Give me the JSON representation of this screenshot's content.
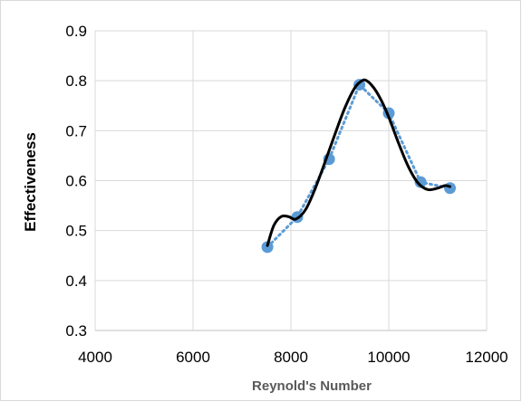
{
  "chart_data": {
    "type": "scatter",
    "title": "",
    "xlabel": "Reynold's Number",
    "ylabel": "Effectiveness",
    "xlim": [
      4000,
      12000
    ],
    "ylim": [
      0.3,
      0.9
    ],
    "xticks": [
      4000,
      6000,
      8000,
      10000,
      12000
    ],
    "yticks": [
      0.3,
      0.4,
      0.5,
      0.6,
      0.7,
      0.8,
      0.9
    ],
    "xtick_labels": [
      "4000",
      "6000",
      "8000",
      "10000",
      "12000"
    ],
    "ytick_labels": [
      "0.3",
      "0.4",
      "0.5",
      "0.6",
      "0.7",
      "0.8",
      "0.9"
    ],
    "grid": true,
    "legend": "none",
    "series": [
      {
        "style": "markers-with-dotted-line",
        "color": "#5b9bd5",
        "x": [
          7520,
          8130,
          8780,
          9400,
          10000,
          10650,
          11250
        ],
        "y": [
          0.467,
          0.527,
          0.643,
          0.792,
          0.735,
          0.597,
          0.585
        ]
      },
      {
        "style": "smooth-trend-line",
        "color": "#000000",
        "x": [
          7520,
          7650,
          7800,
          7950,
          8100,
          8300,
          8500,
          8700,
          8900,
          9100,
          9300,
          9450,
          9550,
          9700,
          9850,
          10000,
          10200,
          10400,
          10600,
          10800,
          11000,
          11150,
          11250
        ],
        "y": [
          0.47,
          0.51,
          0.528,
          0.528,
          0.523,
          0.542,
          0.585,
          0.638,
          0.693,
          0.745,
          0.785,
          0.8,
          0.8,
          0.785,
          0.76,
          0.727,
          0.675,
          0.628,
          0.595,
          0.582,
          0.585,
          0.59,
          0.588
        ]
      }
    ]
  }
}
